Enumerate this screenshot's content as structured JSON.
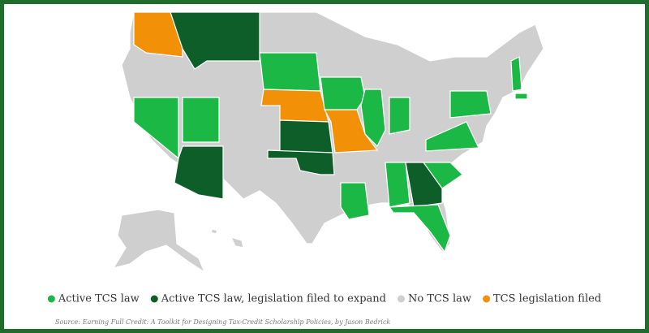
{
  "legend": [
    {
      "label": "Active TCS law",
      "color": "#1bb845"
    },
    {
      "label": "Active TCS law, legislation filed to expand",
      "color": "#0e5e2a"
    },
    {
      "label": "No TCS law",
      "color": "#cfcfcf"
    },
    {
      "label": "TCS legislation filed",
      "color": "#f29108"
    }
  ],
  "source": "Source: Earning Full Credit: A Toolkit for Designing Tax-Credit Scholarship Policies, by Jason Bedrick"
}
